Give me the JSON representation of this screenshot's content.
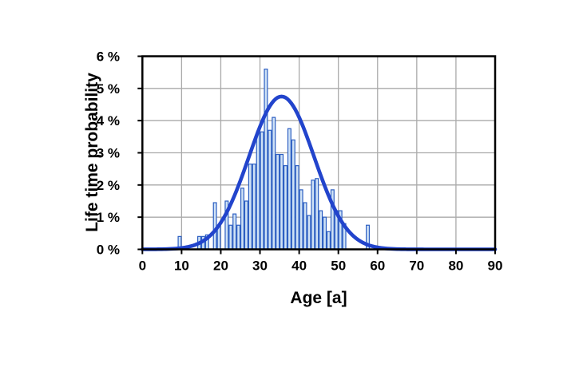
{
  "chart_data": {
    "type": "bar",
    "subtype": "histogram_with_gaussian_fit_curve",
    "title": "",
    "xlabel": "Age [a]",
    "ylabel": "Life time probability",
    "xlim": [
      0,
      90
    ],
    "ylim_percent": [
      0,
      6
    ],
    "grid": true,
    "legend": "none",
    "x_ticks": [
      0,
      10,
      20,
      30,
      40,
      50,
      60,
      70,
      80,
      90
    ],
    "x_tick_labels": [
      "0",
      "10",
      "20",
      "30",
      "40",
      "50",
      "60",
      "70",
      "80",
      "90"
    ],
    "y_ticks_percent": [
      0,
      1,
      2,
      3,
      4,
      5,
      6
    ],
    "y_tick_labels": [
      "0 %",
      "1 %",
      "2 %",
      "3 %",
      "4 %",
      "5 %",
      "6 %"
    ],
    "bars": {
      "bin_width_years": 1,
      "ages": [
        9,
        14,
        15,
        16,
        18,
        19,
        21,
        22,
        23,
        24,
        25,
        26,
        27,
        28,
        29,
        30,
        31,
        32,
        33,
        34,
        35,
        36,
        37,
        38,
        39,
        40,
        41,
        42,
        43,
        44,
        45,
        46,
        47,
        48,
        49,
        50,
        51,
        57
      ],
      "values_percent": [
        0.4,
        0.4,
        0.4,
        0.45,
        1.45,
        0.75,
        1.5,
        0.75,
        1.1,
        0.75,
        1.9,
        1.5,
        2.65,
        2.65,
        3.65,
        3.65,
        5.6,
        3.7,
        4.1,
        2.95,
        2.95,
        2.6,
        3.75,
        3.4,
        2.6,
        1.85,
        1.45,
        1.05,
        2.15,
        2.2,
        1.2,
        1.0,
        0.55,
        1.85,
        1.2,
        1.2,
        0.8,
        0.75
      ]
    },
    "fit_curve": {
      "shape": "gaussian",
      "mean_age": 35.5,
      "sigma_years": 8.3,
      "peak_percent": 4.75,
      "x_start": 0,
      "x_end": 90
    },
    "colors": {
      "background": "#ffffff",
      "bar_fill": "#cfe2f6",
      "bar_stroke": "#2d5fc2",
      "curve": "#2244cc",
      "grid": "#aaaaaa",
      "axis_frame": "#000000",
      "text": "#000000"
    }
  }
}
